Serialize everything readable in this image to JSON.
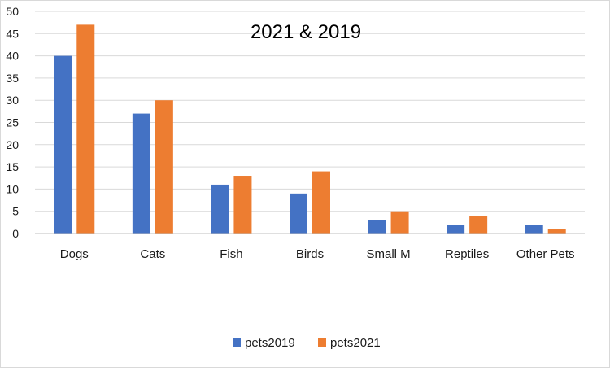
{
  "chart_data": {
    "type": "bar",
    "title": "2021 & 2019",
    "categories": [
      "Dogs",
      "Cats",
      "Fish",
      "Birds",
      "Small M",
      "Reptiles",
      "Other Pets"
    ],
    "series": [
      {
        "name": "pets2019",
        "color": "#4472C4",
        "values": [
          40,
          27,
          11,
          9,
          3,
          2,
          2
        ]
      },
      {
        "name": "pets2021",
        "color": "#ED7D31",
        "values": [
          47,
          30,
          13,
          14,
          5,
          4,
          1
        ]
      }
    ],
    "ylim": [
      0,
      50
    ],
    "yticks": [
      "0",
      "5",
      "10",
      "15",
      "20",
      "25",
      "30",
      "35",
      "40",
      "45",
      "50"
    ],
    "grid": true,
    "legend_position": "bottom"
  }
}
